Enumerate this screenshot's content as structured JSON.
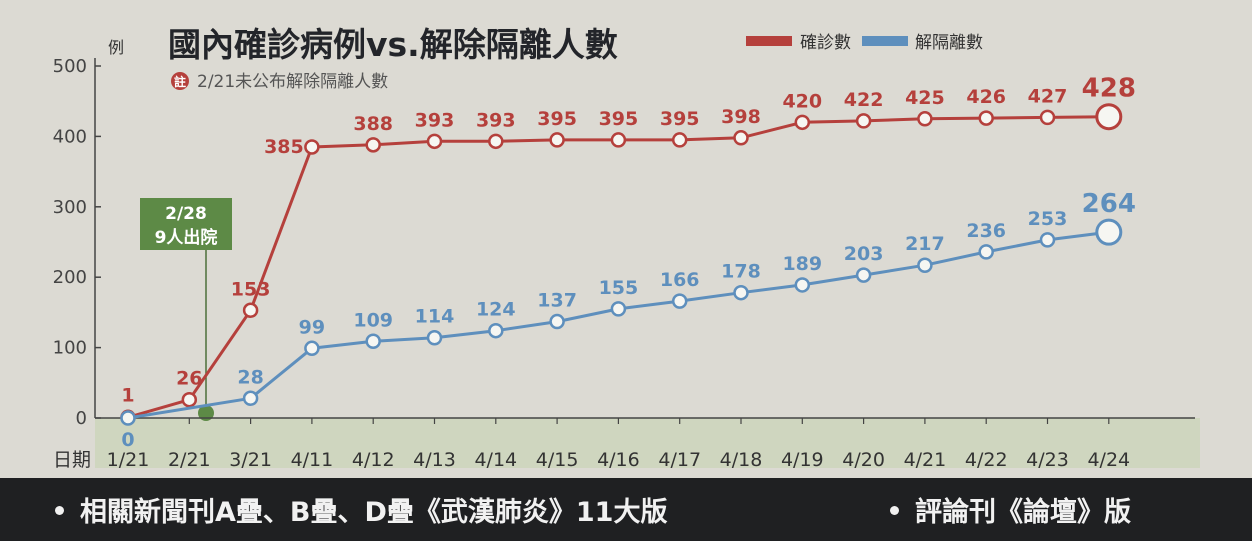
{
  "chart_data": {
    "type": "line",
    "title": "國內確診病例vs.解除隔離人數",
    "note_marker": "註",
    "note": "2/21未公布解除隔離人數",
    "ylabel": "例",
    "xlabel": "日期",
    "ylim": [
      0,
      500
    ],
    "yticks": [
      0,
      100,
      200,
      300,
      400,
      500
    ],
    "categories": [
      "1/21",
      "2/21",
      "3/21",
      "4/11",
      "4/12",
      "4/13",
      "4/14",
      "4/15",
      "4/16",
      "4/17",
      "4/18",
      "4/19",
      "4/20",
      "4/21",
      "4/22",
      "4/23",
      "4/24"
    ],
    "series": [
      {
        "name": "確診數",
        "color": "#b5403c",
        "values": [
          1,
          26,
          153,
          385,
          388,
          393,
          393,
          395,
          395,
          395,
          398,
          420,
          422,
          425,
          426,
          427,
          428
        ],
        "labels": [
          "1",
          "26",
          "153",
          "385",
          "388",
          "393",
          "393",
          "395",
          "395",
          "395",
          "398",
          "420",
          "422",
          "425",
          "426",
          "427",
          "428"
        ]
      },
      {
        "name": "解隔離數",
        "color": "#5e8fbd",
        "values": [
          0,
          null,
          28,
          99,
          109,
          114,
          124,
          137,
          155,
          166,
          178,
          189,
          203,
          217,
          236,
          253,
          264
        ],
        "labels": [
          "0",
          "",
          "28",
          "99",
          "109",
          "114",
          "124",
          "137",
          "155",
          "166",
          "178",
          "189",
          "203",
          "217",
          "236",
          "253",
          "264"
        ]
      }
    ],
    "annotation": {
      "x": "2/28",
      "text_line1": "2/28",
      "text_line2": "9人出院"
    },
    "grid": false,
    "legend": "top-right"
  },
  "footer": {
    "left": "相關新聞刊A疊、B疊、D疊《武漢肺炎》11大版",
    "right": "評論刊《論壇》版"
  }
}
